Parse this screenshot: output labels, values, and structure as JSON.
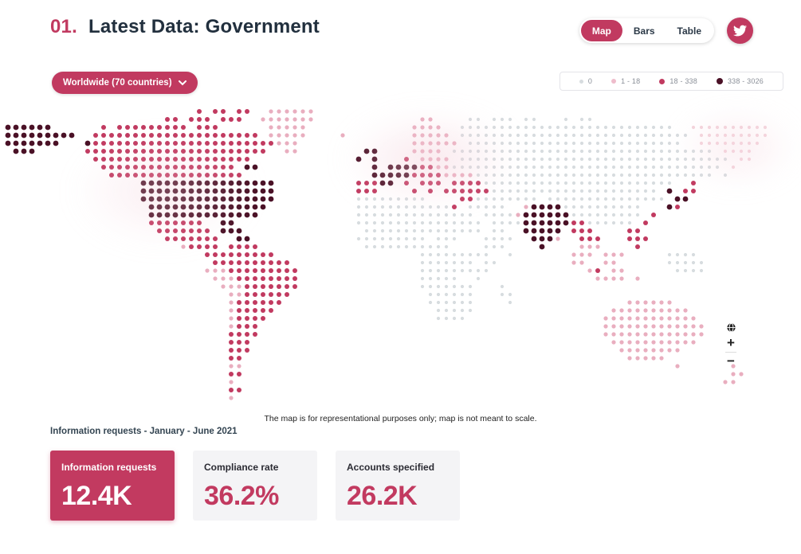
{
  "header": {
    "number": "01.",
    "title": "Latest Data: Government"
  },
  "view_toggle": {
    "options": [
      {
        "label": "Map",
        "active": true
      },
      {
        "label": "Bars",
        "active": false
      },
      {
        "label": "Table",
        "active": false
      }
    ]
  },
  "twitter_button": {
    "icon": "twitter-bird"
  },
  "region_dropdown": {
    "label": "Worldwide (70 countries)",
    "icon": "chevron-down"
  },
  "legend": {
    "items": [
      {
        "label": "0",
        "color": "#d7dcdf",
        "size": 5
      },
      {
        "label": "1 - 18",
        "color": "#eebccb",
        "size": 6
      },
      {
        "label": "18 - 338",
        "color": "#c13a60",
        "size": 7
      },
      {
        "label": "338 - 3026",
        "color": "#4a1126",
        "size": 8
      }
    ]
  },
  "map": {
    "caption": "The map is for representational purposes only; map is not meant to scale.",
    "controls": {
      "reset": "globe",
      "zoom_in": "+",
      "zoom_out": "−"
    },
    "palette": {
      "g": {
        "color": "#d7dcdf",
        "r": 2.1
      },
      "f": {
        "color": "#f3d3db",
        "r": 2.1
      },
      "l": {
        "color": "#e9aebf",
        "r": 2.6
      },
      "p": {
        "color": "#c13a60",
        "r": 3.0
      },
      "d": {
        "color": "#4a1126",
        "r": 3.4
      }
    },
    "grid": [
      [
        [
          24,
          "p.pp.pp"
        ],
        [
          33,
          "llllll"
        ]
      ],
      [
        [
          20,
          "pp.ppp.ppp"
        ],
        [
          32,
          "lllllll"
        ],
        [
          52,
          "ll"
        ],
        [
          58,
          "gg.ggg.gg"
        ],
        [
          70,
          "g.gg"
        ]
      ],
      [
        [
          0,
          "dddddd"
        ],
        [
          12,
          "p.ppppppppp.ppp"
        ],
        [
          33,
          "lllll"
        ],
        [
          51,
          "llll"
        ],
        [
          57,
          "ggggggggggggggggggggggggggg"
        ],
        [
          86,
          "ffffffffff"
        ]
      ],
      [
        [
          0,
          "ddddddddd"
        ],
        [
          11,
          "ppppppppppppppppppppp"
        ],
        [
          33,
          "lllll"
        ],
        [
          42,
          "l"
        ],
        [
          51,
          "lllll"
        ],
        [
          57,
          "ggggggggggggggggggggggggggggg"
        ],
        [
          87,
          "fffffffff"
        ]
      ],
      [
        [
          0,
          "ddddddd"
        ],
        [
          10,
          "dppppppppppppppppppppppp"
        ],
        [
          34,
          "lll"
        ],
        [
          51,
          "llllll"
        ],
        [
          58,
          "ggggggggggggggggggggggggggg"
        ],
        [
          87,
          "ffffffff"
        ]
      ],
      [
        [
          1,
          "ddd"
        ],
        [
          10,
          "ppppppppppppppppppppppp"
        ],
        [
          35,
          "ll"
        ],
        [
          45,
          "dd"
        ],
        [
          51,
          "llll"
        ],
        [
          56,
          "ggggggggggggggggggggggggggggggggg"
        ],
        [
          90,
          "ffff"
        ]
      ],
      [
        [
          11,
          "pppppppppppppppppppp"
        ],
        [
          44,
          "d.d"
        ],
        [
          50,
          "p"
        ],
        [
          52,
          "llll"
        ],
        [
          57,
          "gggggggggggggggggggggggggggggggggg"
        ],
        [
          92,
          "ff"
        ]
      ],
      [
        [
          12,
          "ppppppppppppppppp.dd"
        ],
        [
          46,
          "d"
        ],
        [
          48,
          "dddd"
        ],
        [
          52,
          "pp"
        ],
        [
          54,
          "ll"
        ],
        [
          56,
          "gggggggggggggggggggggggggggggggggg"
        ],
        [
          91,
          "f"
        ]
      ],
      [
        [
          13,
          "ppppppppppppppppp"
        ],
        [
          46,
          "ddd"
        ],
        [
          49,
          "dd"
        ],
        [
          51,
          "pppp"
        ],
        [
          55,
          "llll"
        ],
        [
          59,
          "gggggggggggggggggggggggggggggg"
        ],
        [
          90,
          "g"
        ]
      ],
      [
        [
          17,
          "ddddddddddddddddd"
        ],
        [
          44,
          "ppp"
        ],
        [
          47,
          "dd"
        ],
        [
          50,
          "p"
        ],
        [
          52,
          "ppp"
        ],
        [
          56,
          "pppp"
        ],
        [
          60,
          "gggggggggggggggggggggggg"
        ],
        [
          86,
          "p"
        ]
      ],
      [
        [
          17,
          "ddddddddddddddddd"
        ],
        [
          44,
          "ppp"
        ],
        [
          51,
          "p"
        ],
        [
          53,
          "p"
        ],
        [
          55,
          "pppppp"
        ],
        [
          61,
          "ggggggggggggggggggggg"
        ],
        [
          83,
          "d"
        ],
        [
          85,
          "pp"
        ]
      ],
      [
        [
          17,
          "ddddddddddddddddd"
        ],
        [
          44,
          "ggggggggg"
        ],
        [
          57,
          "pp"
        ],
        [
          59,
          "gggggggg"
        ],
        [
          68,
          "ggggggggggggggg"
        ],
        [
          84,
          "dd"
        ]
      ],
      [
        [
          18,
          "ddddddddddddddd"
        ],
        [
          44,
          "gggggggggggg"
        ],
        [
          56,
          "p"
        ],
        [
          58,
          "ggggg"
        ],
        [
          65,
          "ldddd"
        ],
        [
          70,
          "gggggggggg"
        ],
        [
          83,
          "dp"
        ]
      ],
      [
        [
          18,
          "dddddddddddddd"
        ],
        [
          44,
          "ggggggggggggggg"
        ],
        [
          60,
          "gggg"
        ],
        [
          64,
          "ldddddd"
        ],
        [
          71,
          "ggggggggg"
        ],
        [
          81,
          "p"
        ]
      ],
      [
        [
          18,
          "ppppppp"
        ],
        [
          27,
          "dd"
        ],
        [
          44,
          "gggggggggggggggg"
        ],
        [
          61,
          "gggg"
        ],
        [
          65,
          "dddddd"
        ],
        [
          71,
          "pp"
        ],
        [
          73,
          "gggggg"
        ],
        [
          80,
          "p"
        ]
      ],
      [
        [
          19,
          "ppppppp"
        ],
        [
          27,
          "ddd"
        ],
        [
          45,
          "ggggggggggggggg"
        ],
        [
          61,
          "gg"
        ],
        [
          65,
          "ddddd"
        ],
        [
          71,
          "ppp"
        ],
        [
          78,
          "pp"
        ]
      ],
      [
        [
          20,
          "ppppppp"
        ],
        [
          29,
          "dd"
        ],
        [
          44,
          "ggggggggg"
        ],
        [
          54,
          "ggg"
        ],
        [
          60,
          "gggg"
        ],
        [
          66,
          "ddd"
        ],
        [
          69,
          "l"
        ],
        [
          72,
          "ppp"
        ],
        [
          78,
          "ppp"
        ]
      ],
      [
        [
          22,
          "lpppp"
        ],
        [
          28,
          "pppp"
        ],
        [
          45,
          "ggggggggggg"
        ],
        [
          60,
          "ggg"
        ],
        [
          67,
          "d"
        ],
        [
          72,
          "lll"
        ],
        [
          79,
          "p"
        ]
      ],
      [
        [
          25,
          "ppppp"
        ],
        [
          30,
          "pppp"
        ],
        [
          52,
          "ggggggggg"
        ],
        [
          63,
          "g"
        ],
        [
          71,
          "lll"
        ],
        [
          75,
          "lll"
        ],
        [
          83,
          "gggg"
        ]
      ],
      [
        [
          26,
          "pppp"
        ],
        [
          30,
          "pppppp"
        ],
        [
          52,
          "ggggggg"
        ],
        [
          60,
          "gg"
        ],
        [
          71,
          "ll"
        ],
        [
          75,
          "ll"
        ],
        [
          83,
          "ggggg"
        ]
      ],
      [
        [
          25,
          "lll"
        ],
        [
          28,
          "ppppppppp"
        ],
        [
          52,
          "ggggggg"
        ],
        [
          59,
          "gg"
        ],
        [
          73,
          "lp"
        ],
        [
          76,
          "ll"
        ],
        [
          84,
          "gggg"
        ]
      ],
      [
        [
          26,
          "lll"
        ],
        [
          29,
          "pppppppp"
        ],
        [
          52,
          "ggggg"
        ],
        [
          59,
          "g"
        ],
        [
          74,
          "llll"
        ],
        [
          79,
          "l"
        ]
      ],
      [
        [
          27,
          "lll"
        ],
        [
          30,
          "ppppppp"
        ],
        [
          52,
          "ggggggg"
        ],
        [
          62,
          "g"
        ]
      ],
      [
        [
          28,
          "ll"
        ],
        [
          30,
          "pppppp"
        ],
        [
          53,
          "gggggg"
        ],
        [
          62,
          "gg"
        ]
      ],
      [
        [
          28,
          "lpppppp"
        ],
        [
          53,
          "gggggg"
        ],
        [
          63,
          "g"
        ],
        [
          78,
          "llllll"
        ]
      ],
      [
        [
          28,
          "lppppp"
        ],
        [
          54,
          "ggggg"
        ],
        [
          76,
          "llllllllll"
        ]
      ],
      [
        [
          28,
          "lpppp"
        ],
        [
          54,
          "gggg"
        ],
        [
          75,
          "llllllllllll"
        ]
      ],
      [
        [
          28,
          "lppp"
        ],
        [
          75,
          "lllllllllllll"
        ]
      ],
      [
        [
          28,
          "pppp"
        ],
        [
          75,
          "lllllllllllll"
        ]
      ],
      [
        [
          28,
          "ppp"
        ],
        [
          76,
          "lllllllllll"
        ]
      ],
      [
        [
          28,
          "ppp"
        ],
        [
          77,
          "llllllll"
        ]
      ],
      [
        [
          28,
          "pp"
        ],
        [
          78,
          "lllll"
        ]
      ],
      [
        [
          28,
          "ll"
        ],
        [
          84,
          "l"
        ],
        [
          91,
          "l"
        ]
      ],
      [
        [
          28,
          "pp"
        ],
        [
          91,
          "ll"
        ]
      ],
      [
        [
          28,
          "l"
        ],
        [
          90,
          "ll"
        ]
      ],
      [
        [
          28,
          "pp"
        ]
      ],
      [
        [
          28,
          "l"
        ]
      ]
    ]
  },
  "section_label": "Information requests - January - June 2021",
  "stats": [
    {
      "label": "Information requests",
      "value": "12.4K",
      "highlight": true
    },
    {
      "label": "Compliance rate",
      "value": "36.2%",
      "highlight": false
    },
    {
      "label": "Accounts specified",
      "value": "26.2K",
      "highlight": false
    }
  ],
  "colors": {
    "accent": "#c13a60",
    "title": "#22303e",
    "dot_dark": "#4a1126",
    "dot_light": "#e9aebf",
    "dot_zero": "#d7dcdf",
    "card_bg": "#f4f4f6"
  }
}
